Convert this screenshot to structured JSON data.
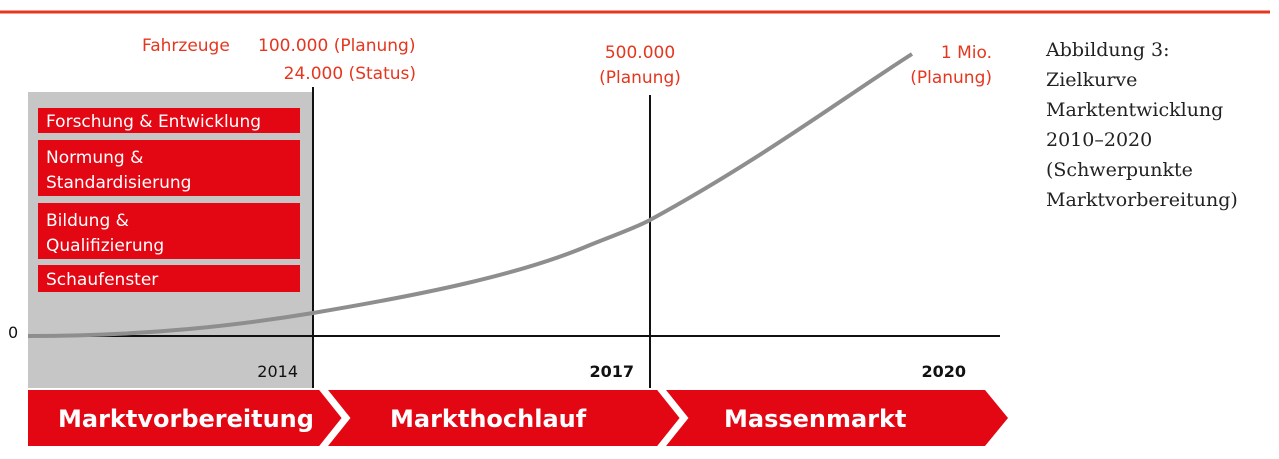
{
  "header": {
    "vehicles_label": "Fahrzeuge",
    "plan_2014": "100.000 (Planung)",
    "status_2014": "24.000 (Status)"
  },
  "milestones": [
    {
      "lines": [
        "500.000",
        "(Planung)"
      ]
    },
    {
      "lines": [
        "1 Mio.",
        "(Planung)"
      ]
    }
  ],
  "caption": {
    "lines": [
      "Abbildung 3:",
      "Zielkurve",
      "Marktentwicklung",
      "2010–2020",
      "(Schwerpunkte",
      "Marktvorbereitung)"
    ]
  },
  "focus_boxes": [
    {
      "lines": [
        "Forschung & Entwicklung"
      ]
    },
    {
      "lines": [
        "Normung &",
        "Standardisierung"
      ]
    },
    {
      "lines": [
        "Bildung &",
        "Qualifizierung"
      ]
    },
    {
      "lines": [
        "Schaufenster"
      ]
    }
  ],
  "axis": {
    "origin": "0",
    "years": [
      "2014",
      "2017",
      "2020"
    ]
  },
  "phases": [
    "Marktvorbereitung",
    "Markthochlauf",
    "Massenmarkt"
  ]
}
